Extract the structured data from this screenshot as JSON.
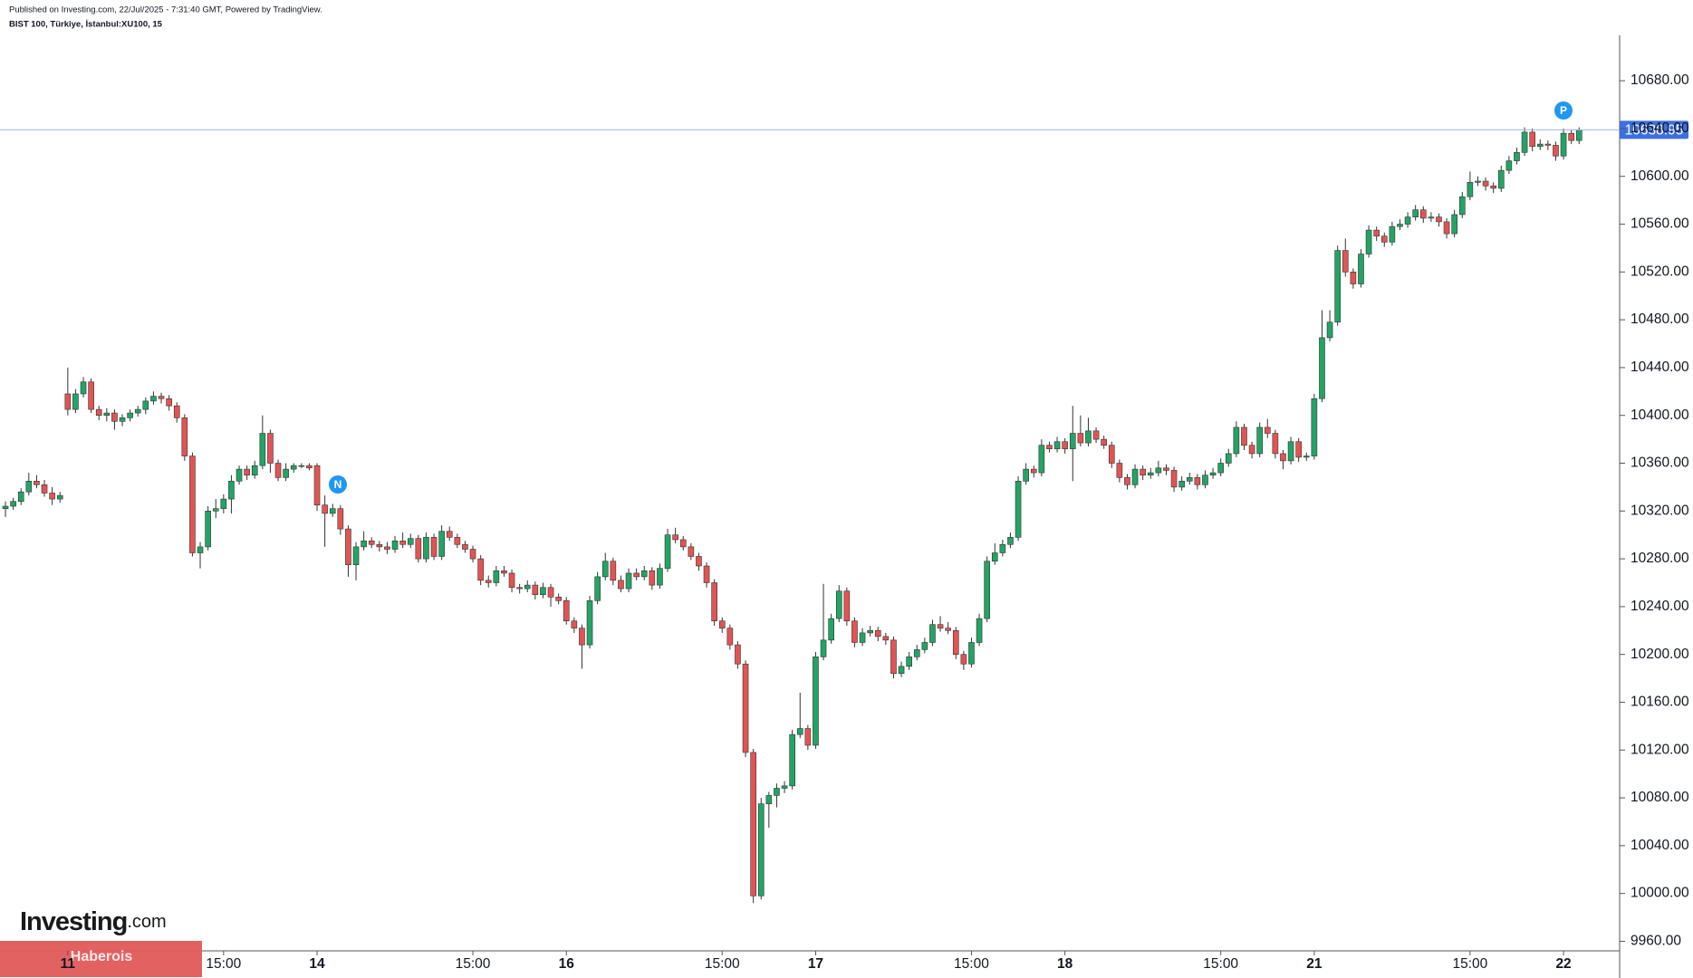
{
  "chart_data": {
    "type": "candlestick",
    "header": "Published on Investing.com, 22/Jul/2025 - 7:31:40 GMT, Powered by TradingView.",
    "title": "BIST 100, Türkiye, İstanbul:XU100, 15",
    "up_color": "#22a465",
    "down_color": "#e25454",
    "grid": false,
    "ylim": [
      9952,
      10718
    ],
    "xlim": [
      -0.7,
      207.2
    ],
    "yticks": [
      {
        "value": 9960,
        "label": "9960.00"
      },
      {
        "value": 10000,
        "label": "10000.00"
      },
      {
        "value": 10040,
        "label": "10040.00"
      },
      {
        "value": 10080,
        "label": "10080.00"
      },
      {
        "value": 10120,
        "label": "10120.00"
      },
      {
        "value": 10160,
        "label": "10160.00"
      },
      {
        "value": 10200,
        "label": "10200.00"
      },
      {
        "value": 10240,
        "label": "10240.00"
      },
      {
        "value": 10280,
        "label": "10280.00"
      },
      {
        "value": 10320,
        "label": "10320.00"
      },
      {
        "value": 10360,
        "label": "10360.00"
      },
      {
        "value": 10400,
        "label": "10400.00"
      },
      {
        "value": 10440,
        "label": "10440.00"
      },
      {
        "value": 10480,
        "label": "10480.00"
      },
      {
        "value": 10520,
        "label": "10520.00"
      },
      {
        "value": 10560,
        "label": "10560.00"
      },
      {
        "value": 10600,
        "label": "10600.00"
      },
      {
        "value": 10640,
        "label": "10640.00"
      },
      {
        "value": 10680,
        "label": "10680.00"
      }
    ],
    "xticks": [
      {
        "value": 8,
        "label": "11"
      },
      {
        "value": 28,
        "label": "15:00"
      },
      {
        "value": 40,
        "label": "14"
      },
      {
        "value": 60,
        "label": "15:00"
      },
      {
        "value": 72,
        "label": "16"
      },
      {
        "value": 92,
        "label": "15:00"
      },
      {
        "value": 104,
        "label": "17"
      },
      {
        "value": 124,
        "label": "15:00"
      },
      {
        "value": 136,
        "label": "18"
      },
      {
        "value": 156,
        "label": "15:00"
      },
      {
        "value": 168,
        "label": "21"
      },
      {
        "value": 188,
        "label": "15:00"
      },
      {
        "value": 200,
        "label": "22"
      }
    ],
    "last_price": 10638.95,
    "last_price_color": "#3d6fe0",
    "markers": [
      "N",
      "P"
    ],
    "marker_color": "#2196f3",
    "logo": {
      "name": "Investing",
      "suffix": ".com"
    },
    "watermark": "Haberois",
    "candles": [
      [
        10322,
        10328,
        10315,
        10324
      ],
      [
        10324,
        10331,
        10321,
        10328
      ],
      [
        10328,
        10339,
        10325,
        10336
      ],
      [
        10336,
        10352,
        10333,
        10345
      ],
      [
        10345,
        10350,
        10339,
        10342
      ],
      [
        10342,
        10346,
        10332,
        10335
      ],
      [
        10335,
        10340,
        10325,
        10330
      ],
      [
        10330,
        10336,
        10327,
        10333
      ],
      [
        10418,
        10440,
        10400,
        10405
      ],
      [
        10405,
        10422,
        10402,
        10418
      ],
      [
        10418,
        10432,
        10415,
        10428
      ],
      [
        10428,
        10431,
        10402,
        10405
      ],
      [
        10405,
        10408,
        10396,
        10400
      ],
      [
        10400,
        10406,
        10395,
        10402
      ],
      [
        10402,
        10405,
        10388,
        10395
      ],
      [
        10395,
        10401,
        10391,
        10398
      ],
      [
        10398,
        10405,
        10395,
        10402
      ],
      [
        10402,
        10408,
        10399,
        10405
      ],
      [
        10405,
        10415,
        10401,
        10412
      ],
      [
        10412,
        10420,
        10409,
        10416
      ],
      [
        10416,
        10419,
        10410,
        10414
      ],
      [
        10414,
        10417,
        10404,
        10408
      ],
      [
        10408,
        10411,
        10394,
        10398
      ],
      [
        10398,
        10401,
        10362,
        10366
      ],
      [
        10366,
        10369,
        10282,
        10285
      ],
      [
        10285,
        10294,
        10272,
        10290
      ],
      [
        10290,
        10324,
        10287,
        10320
      ],
      [
        10320,
        10330,
        10314,
        10322
      ],
      [
        10322,
        10334,
        10318,
        10330
      ],
      [
        10330,
        10350,
        10318,
        10345
      ],
      [
        10345,
        10358,
        10342,
        10355
      ],
      [
        10355,
        10358,
        10346,
        10350
      ],
      [
        10350,
        10362,
        10347,
        10358
      ],
      [
        10358,
        10400,
        10355,
        10385
      ],
      [
        10385,
        10388,
        10352,
        10360
      ],
      [
        10360,
        10363,
        10345,
        10348
      ],
      [
        10348,
        10360,
        10345,
        10355
      ],
      [
        10355,
        10360,
        10352,
        10358
      ],
      [
        10358,
        10360,
        10356,
        10358
      ],
      [
        10358,
        10360,
        10354,
        10356
      ],
      [
        10358,
        10360,
        10320,
        10325
      ],
      [
        10325,
        10333,
        10290,
        10318
      ],
      [
        10318,
        10326,
        10315,
        10322
      ],
      [
        10322,
        10325,
        10300,
        10305
      ],
      [
        10305,
        10308,
        10265,
        10275
      ],
      [
        10275,
        10294,
        10262,
        10290
      ],
      [
        10290,
        10303,
        10287,
        10295
      ],
      [
        10295,
        10298,
        10289,
        10292
      ],
      [
        10292,
        10295,
        10286,
        10290
      ],
      [
        10290,
        10294,
        10284,
        10288
      ],
      [
        10288,
        10299,
        10285,
        10295
      ],
      [
        10295,
        10302,
        10289,
        10292
      ],
      [
        10292,
        10301,
        10289,
        10297
      ],
      [
        10297,
        10300,
        10277,
        10280
      ],
      [
        10280,
        10302,
        10277,
        10298
      ],
      [
        10298,
        10301,
        10279,
        10282
      ],
      [
        10282,
        10308,
        10279,
        10303
      ],
      [
        10303,
        10307,
        10295,
        10298
      ],
      [
        10298,
        10301,
        10289,
        10292
      ],
      [
        10292,
        10295,
        10285,
        10288
      ],
      [
        10288,
        10291,
        10277,
        10280
      ],
      [
        10280,
        10283,
        10258,
        10262
      ],
      [
        10262,
        10266,
        10256,
        10260
      ],
      [
        10260,
        10274,
        10257,
        10270
      ],
      [
        10270,
        10274,
        10265,
        10268
      ],
      [
        10268,
        10271,
        10252,
        10256
      ],
      [
        10256,
        10259,
        10251,
        10255
      ],
      [
        10255,
        10262,
        10252,
        10258
      ],
      [
        10258,
        10261,
        10246,
        10250
      ],
      [
        10250,
        10260,
        10247,
        10256
      ],
      [
        10256,
        10259,
        10240,
        10248
      ],
      [
        10248,
        10251,
        10242,
        10245
      ],
      [
        10245,
        10248,
        10225,
        10228
      ],
      [
        10228,
        10231,
        10218,
        10222
      ],
      [
        10222,
        10225,
        10188,
        10208
      ],
      [
        10208,
        10249,
        10205,
        10245
      ],
      [
        10245,
        10269,
        10242,
        10265
      ],
      [
        10265,
        10285,
        10262,
        10278
      ],
      [
        10278,
        10281,
        10258,
        10262
      ],
      [
        10262,
        10266,
        10252,
        10255
      ],
      [
        10255,
        10272,
        10252,
        10268
      ],
      [
        10268,
        10272,
        10262,
        10265
      ],
      [
        10265,
        10274,
        10262,
        10270
      ],
      [
        10270,
        10273,
        10254,
        10258
      ],
      [
        10258,
        10276,
        10255,
        10272
      ],
      [
        10272,
        10305,
        10269,
        10300
      ],
      [
        10300,
        10306,
        10293,
        10296
      ],
      [
        10296,
        10299,
        10287,
        10290
      ],
      [
        10290,
        10293,
        10279,
        10282
      ],
      [
        10282,
        10285,
        10270,
        10274
      ],
      [
        10274,
        10277,
        10256,
        10260
      ],
      [
        10260,
        10263,
        10224,
        10228
      ],
      [
        10228,
        10231,
        10218,
        10222
      ],
      [
        10222,
        10225,
        10204,
        10208
      ],
      [
        10208,
        10211,
        10188,
        10192
      ],
      [
        10192,
        10195,
        10114,
        10118
      ],
      [
        10118,
        10121,
        9992,
        9998
      ],
      [
        9998,
        10080,
        9995,
        10075
      ],
      [
        10075,
        10085,
        10055,
        10082
      ],
      [
        10082,
        10092,
        10072,
        10088
      ],
      [
        10088,
        10094,
        10084,
        10090
      ],
      [
        10090,
        10137,
        10087,
        10133
      ],
      [
        10133,
        10168,
        10130,
        10138
      ],
      [
        10138,
        10141,
        10120,
        10124
      ],
      [
        10124,
        10202,
        10121,
        10198
      ],
      [
        10198,
        10259,
        10195,
        10212
      ],
      [
        10212,
        10234,
        10209,
        10230
      ],
      [
        10230,
        10258,
        10227,
        10253
      ],
      [
        10253,
        10256,
        10224,
        10228
      ],
      [
        10228,
        10231,
        10206,
        10210
      ],
      [
        10210,
        10222,
        10207,
        10218
      ],
      [
        10218,
        10224,
        10215,
        10220
      ],
      [
        10220,
        10223,
        10211,
        10215
      ],
      [
        10215,
        10218,
        10208,
        10212
      ],
      [
        10212,
        10215,
        10180,
        10184
      ],
      [
        10184,
        10194,
        10181,
        10190
      ],
      [
        10190,
        10202,
        10187,
        10198
      ],
      [
        10198,
        10208,
        10195,
        10204
      ],
      [
        10204,
        10214,
        10201,
        10210
      ],
      [
        10210,
        10229,
        10207,
        10225
      ],
      [
        10225,
        10232,
        10219,
        10222
      ],
      [
        10222,
        10227,
        10217,
        10220
      ],
      [
        10220,
        10223,
        10196,
        10200
      ],
      [
        10200,
        10203,
        10187,
        10192
      ],
      [
        10192,
        10214,
        10189,
        10210
      ],
      [
        10210,
        10234,
        10207,
        10230
      ],
      [
        10230,
        10282,
        10227,
        10278
      ],
      [
        10278,
        10293,
        10275,
        10285
      ],
      [
        10285,
        10296,
        10282,
        10292
      ],
      [
        10292,
        10302,
        10289,
        10298
      ],
      [
        10298,
        10349,
        10295,
        10345
      ],
      [
        10345,
        10360,
        10342,
        10355
      ],
      [
        10355,
        10358,
        10348,
        10352
      ],
      [
        10352,
        10380,
        10349,
        10375
      ],
      [
        10375,
        10378,
        10369,
        10372
      ],
      [
        10372,
        10382,
        10369,
        10378
      ],
      [
        10378,
        10381,
        10368,
        10372
      ],
      [
        10372,
        10408,
        10345,
        10385
      ],
      [
        10385,
        10400,
        10374,
        10377
      ],
      [
        10377,
        10398,
        10374,
        10387
      ],
      [
        10387,
        10390,
        10377,
        10380
      ],
      [
        10380,
        10383,
        10372,
        10375
      ],
      [
        10375,
        10378,
        10356,
        10360
      ],
      [
        10360,
        10363,
        10344,
        10348
      ],
      [
        10348,
        10351,
        10338,
        10342
      ],
      [
        10342,
        10359,
        10339,
        10355
      ],
      [
        10355,
        10358,
        10346,
        10350
      ],
      [
        10350,
        10356,
        10347,
        10352
      ],
      [
        10352,
        10362,
        10349,
        10356
      ],
      [
        10356,
        10359,
        10350,
        10354
      ],
      [
        10354,
        10357,
        10336,
        10340
      ],
      [
        10340,
        10349,
        10337,
        10345
      ],
      [
        10345,
        10352,
        10342,
        10348
      ],
      [
        10348,
        10351,
        10338,
        10342
      ],
      [
        10342,
        10354,
        10339,
        10350
      ],
      [
        10350,
        10356,
        10347,
        10352
      ],
      [
        10352,
        10364,
        10349,
        10360
      ],
      [
        10360,
        10372,
        10357,
        10368
      ],
      [
        10368,
        10395,
        10365,
        10390
      ],
      [
        10390,
        10393,
        10371,
        10375
      ],
      [
        10375,
        10378,
        10364,
        10368
      ],
      [
        10368,
        10394,
        10365,
        10390
      ],
      [
        10390,
        10397,
        10381,
        10385
      ],
      [
        10385,
        10388,
        10364,
        10368
      ],
      [
        10368,
        10371,
        10355,
        10362
      ],
      [
        10362,
        10382,
        10359,
        10378
      ],
      [
        10378,
        10381,
        10361,
        10365
      ],
      [
        10365,
        10369,
        10362,
        10366
      ],
      [
        10366,
        10418,
        10363,
        10414
      ],
      [
        10414,
        10488,
        10411,
        10465
      ],
      [
        10465,
        10488,
        10462,
        10478
      ],
      [
        10478,
        10542,
        10475,
        10538
      ],
      [
        10538,
        10548,
        10516,
        10520
      ],
      [
        10520,
        10523,
        10506,
        10510
      ],
      [
        10510,
        10539,
        10507,
        10535
      ],
      [
        10535,
        10559,
        10532,
        10555
      ],
      [
        10555,
        10558,
        10546,
        10550
      ],
      [
        10550,
        10553,
        10541,
        10545
      ],
      [
        10545,
        10562,
        10542,
        10558
      ],
      [
        10558,
        10564,
        10555,
        10560
      ],
      [
        10560,
        10570,
        10557,
        10566
      ],
      [
        10566,
        10576,
        10563,
        10572
      ],
      [
        10572,
        10575,
        10561,
        10565
      ],
      [
        10565,
        10570,
        10562,
        10566
      ],
      [
        10566,
        10569,
        10558,
        10562
      ],
      [
        10562,
        10565,
        10548,
        10552
      ],
      [
        10552,
        10572,
        10549,
        10568
      ],
      [
        10568,
        10587,
        10565,
        10583
      ],
      [
        10583,
        10604,
        10580,
        10595
      ],
      [
        10595,
        10600,
        10592,
        10596
      ],
      [
        10596,
        10599,
        10588,
        10592
      ],
      [
        10592,
        10595,
        10586,
        10590
      ],
      [
        10590,
        10609,
        10587,
        10605
      ],
      [
        10605,
        10617,
        10602,
        10613
      ],
      [
        10613,
        10624,
        10610,
        10620
      ],
      [
        10620,
        10641,
        10617,
        10637
      ],
      [
        10637,
        10640,
        10621,
        10625
      ],
      [
        10625,
        10631,
        10622,
        10627
      ],
      [
        10627,
        10630,
        10622,
        10626
      ],
      [
        10626,
        10629,
        10613,
        10617
      ],
      [
        10617,
        10640,
        10614,
        10636
      ],
      [
        10636,
        10639,
        10627,
        10630
      ],
      [
        10630,
        10641,
        10627,
        10638.95
      ]
    ]
  }
}
